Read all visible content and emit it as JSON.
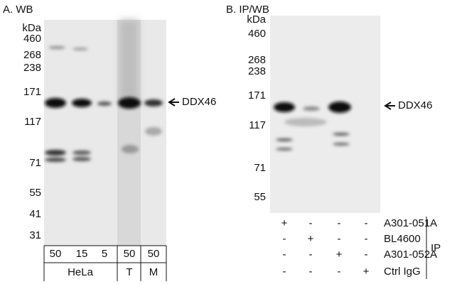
{
  "panel_a": {
    "title": "A. WB",
    "unit": "kDa",
    "markers": [
      "460",
      "268",
      "238",
      "171",
      "117",
      "71",
      "55",
      "41",
      "31"
    ],
    "target": "DDX46",
    "loads": [
      "50",
      "15",
      "5",
      "50",
      "50"
    ],
    "groups": [
      "HeLa",
      "T",
      "M"
    ]
  },
  "panel_b": {
    "title": "B. IP/WB",
    "unit": "kDa",
    "markers": [
      "460",
      "268",
      "238",
      "171",
      "117",
      "71",
      "55"
    ],
    "target": "DDX46",
    "rows": [
      {
        "antibody": "A301-051A",
        "lanes": [
          "+",
          "-",
          "-",
          "-"
        ]
      },
      {
        "antibody": "BL4600",
        "lanes": [
          "-",
          "+",
          "-",
          "-"
        ]
      },
      {
        "antibody": "A301-052A",
        "lanes": [
          "-",
          "-",
          "+",
          "-"
        ]
      },
      {
        "antibody": "Ctrl IgG",
        "lanes": [
          "-",
          "-",
          "-",
          "+"
        ]
      }
    ],
    "group": "IP"
  }
}
